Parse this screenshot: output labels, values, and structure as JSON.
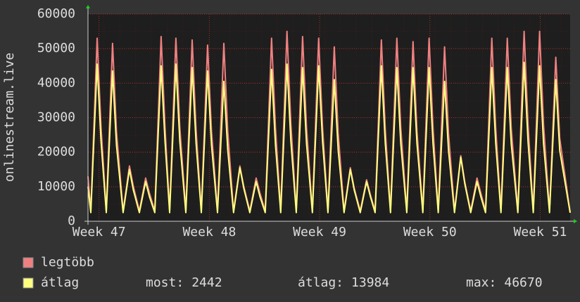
{
  "chart_data": {
    "type": "line",
    "ylabel": "onlinestream.live",
    "ylim": [
      0,
      60000
    ],
    "yticks": [
      0,
      10000,
      20000,
      30000,
      40000,
      50000,
      60000
    ],
    "xlim": [
      0,
      30.6
    ],
    "xticks": [
      {
        "value": 0.7,
        "label": "Week 47"
      },
      {
        "value": 7.7,
        "label": "Week 48"
      },
      {
        "value": 14.7,
        "label": "Week 49"
      },
      {
        "value": 21.7,
        "label": "Week 50"
      },
      {
        "value": 28.7,
        "label": "Week 51"
      }
    ],
    "grid": true,
    "x": [
      0,
      0.18,
      0.58,
      0.83,
      1.16,
      1.56,
      1.81,
      2.23,
      2.63,
      2.88,
      3.26,
      3.66,
      3.91,
      4.24,
      4.64,
      4.89,
      5.18,
      5.58,
      5.83,
      6.21,
      6.61,
      6.86,
      7.19,
      7.59,
      7.84,
      8.22,
      8.62,
      8.87,
      9.24,
      9.64,
      9.89,
      10.27,
      10.67,
      10.92,
      11.25,
      11.65,
      11.9,
      12.23,
      12.63,
      12.88,
      13.22,
      13.62,
      13.87,
      14.24,
      14.64,
      14.89,
      15.23,
      15.63,
      15.88,
      16.25,
      16.65,
      16.9,
      17.28,
      17.68,
      17.93,
      18.22,
      18.62,
      18.87,
      19.2,
      19.6,
      19.85,
      20.23,
      20.63,
      20.88,
      21.25,
      21.65,
      21.9,
      22.23,
      22.63,
      22.88,
      23.26,
      23.66,
      23.91,
      24.29,
      24.69,
      24.94,
      25.23,
      25.63,
      25.88,
      26.21,
      26.61,
      26.86,
      27.28,
      27.68,
      27.93,
      28.26,
      28.66,
      28.91,
      29.29,
      29.69,
      29.94,
      30.6
    ],
    "series": [
      {
        "name": "legtöbb",
        "color": "#f08080",
        "values": [
          13000,
          3000,
          53000,
          27000,
          3000,
          51500,
          26000,
          3000,
          16000,
          10000,
          3000,
          12500,
          8000,
          3000,
          53500,
          27000,
          3000,
          53000,
          27000,
          3000,
          52500,
          26500,
          3000,
          51000,
          26000,
          3000,
          51500,
          26000,
          3000,
          16000,
          10000,
          3000,
          12500,
          8000,
          3000,
          53000,
          27000,
          3000,
          55000,
          28000,
          3000,
          53500,
          27000,
          3000,
          53000,
          27000,
          3000,
          50500,
          25500,
          3000,
          15500,
          9500,
          3000,
          12000,
          7500,
          3000,
          52500,
          26500,
          3000,
          53000,
          27000,
          3000,
          52000,
          26000,
          3000,
          53000,
          27000,
          3000,
          50500,
          25500,
          3000,
          19000,
          11500,
          3000,
          12500,
          8000,
          3000,
          53000,
          27000,
          3000,
          53000,
          27000,
          3000,
          55000,
          28000,
          3000,
          55000,
          28000,
          3000,
          47500,
          24000,
          2600
        ]
      },
      {
        "name": "átlag",
        "color": "#ffff80",
        "values": [
          10000,
          2500,
          45500,
          23000,
          2500,
          43500,
          22000,
          2500,
          15000,
          9000,
          2500,
          11500,
          7000,
          2500,
          45000,
          23000,
          2500,
          45500,
          23000,
          2500,
          44500,
          22500,
          2500,
          43500,
          22000,
          2500,
          40500,
          20500,
          2500,
          15500,
          9500,
          2500,
          11500,
          7000,
          2500,
          44000,
          22000,
          2500,
          45500,
          23000,
          2500,
          44500,
          22500,
          2500,
          45000,
          23000,
          2500,
          41000,
          20500,
          2500,
          15000,
          9000,
          2500,
          11500,
          7000,
          2500,
          45000,
          22500,
          2500,
          44500,
          22500,
          2500,
          44500,
          22500,
          2500,
          44500,
          22500,
          2500,
          40500,
          20500,
          2500,
          18500,
          11000,
          2500,
          11500,
          7000,
          2500,
          44500,
          22500,
          2500,
          44500,
          22500,
          2500,
          46000,
          23000,
          2500,
          45000,
          22500,
          2500,
          41000,
          20500,
          2442
        ]
      }
    ],
    "stats": [
      {
        "label": "most:",
        "value": 2442
      },
      {
        "label": "átlag:",
        "value": 13984
      },
      {
        "label": "max:",
        "value": 46670
      }
    ]
  }
}
